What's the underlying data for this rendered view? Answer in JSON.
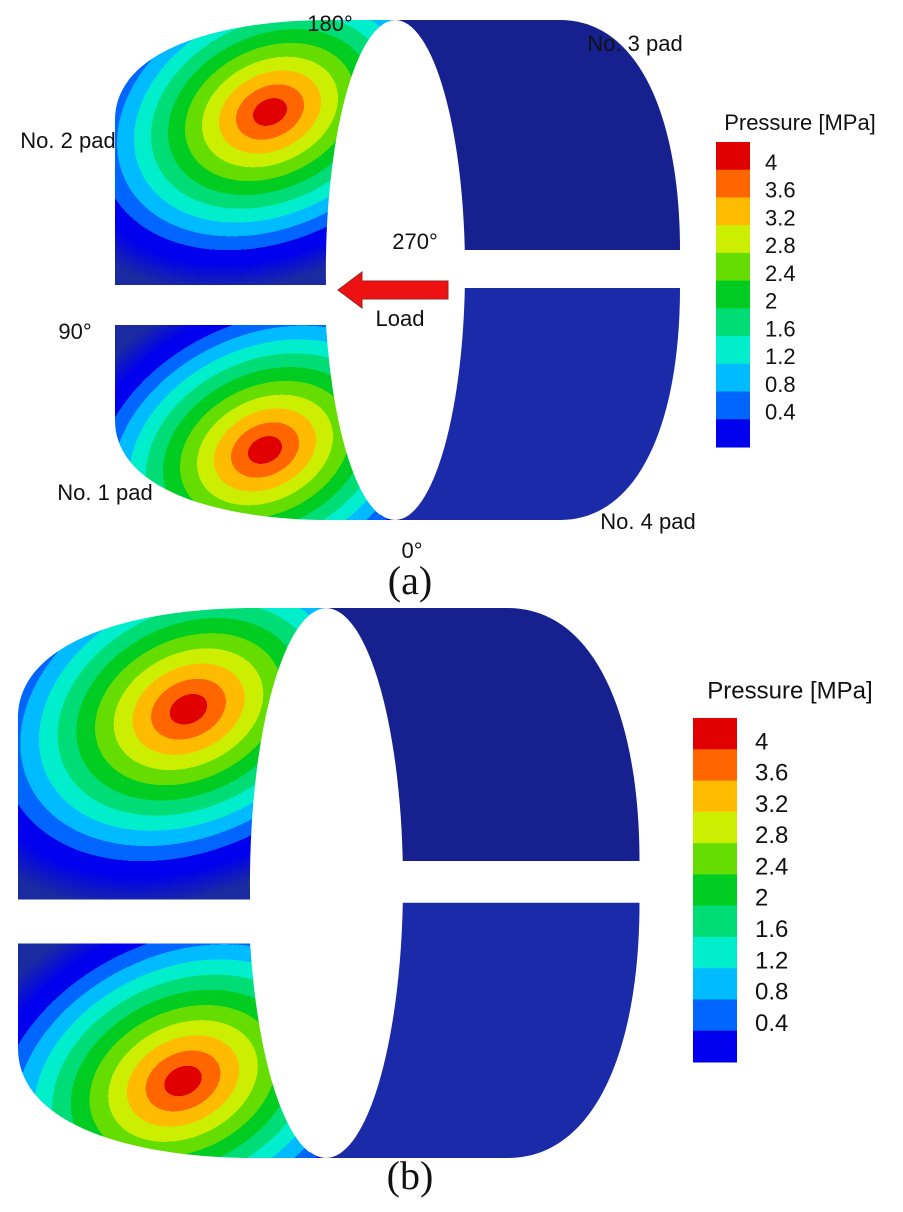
{
  "panels": [
    {
      "caption": "(a)",
      "angles": {
        "top": "180°",
        "right": "270°",
        "left": "90°",
        "bottom": "0°"
      },
      "pads": [
        "No. 1 pad",
        "No. 2 pad",
        "No. 3 pad",
        "No. 4 pad"
      ],
      "load": "Load",
      "legend": {
        "title": "Pressure [MPa]",
        "levels": [
          4,
          3.6,
          3.2,
          2.8,
          2.4,
          2,
          1.6,
          1.2,
          0.8,
          0.4
        ],
        "colors": [
          "#e00000",
          "#ff6600",
          "#ffbb00",
          "#ccee00",
          "#66dd00",
          "#00cc22",
          "#00dd77",
          "#00eecc",
          "#00bbff",
          "#0066ff",
          "#0000ee"
        ]
      }
    },
    {
      "caption": "(b)",
      "legend": {
        "title": "Pressure [MPa]",
        "levels": [
          4,
          3.6,
          3.2,
          2.8,
          2.4,
          2,
          1.6,
          1.2,
          0.8,
          0.4
        ],
        "colors": [
          "#e00000",
          "#ff6600",
          "#ffbb00",
          "#ccee00",
          "#66dd00",
          "#00cc22",
          "#00dd77",
          "#00eecc",
          "#00bbff",
          "#0066ff",
          "#0000ee"
        ]
      }
    }
  ]
}
